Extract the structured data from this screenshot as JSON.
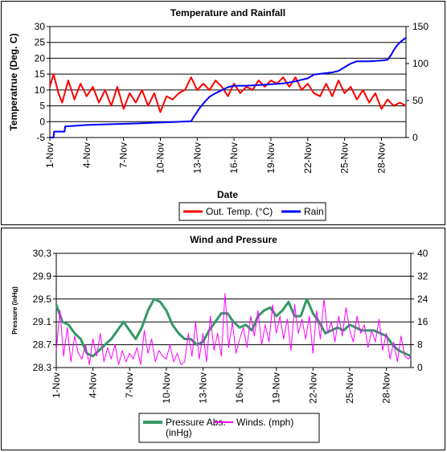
{
  "charts": [
    {
      "title": "Temperature and Rainfall",
      "ylabel": "Temperatrue (Deg. C)",
      "xlabel": "Date",
      "legend": [
        "Out. Temp. (°C)",
        "Rain"
      ]
    },
    {
      "title": "Wind and Pressure",
      "ylabel": "Pressure (inHg)",
      "xlabel": "Date",
      "legend": [
        "Pressure Abs.\n(inHg)",
        "Winds. (mph)"
      ]
    }
  ],
  "chart_data": [
    {
      "type": "line",
      "title": "Temperature and Rainfall",
      "xlabel": "Date",
      "ylabel": "Temperatrue (Deg. C)",
      "x_range": [
        "1-Nov",
        "30-Nov"
      ],
      "x_ticks": [
        "1-Nov",
        "4-Nov",
        "7-Nov",
        "10-Nov",
        "13-Nov",
        "16-Nov",
        "19-Nov",
        "22-Nov",
        "25-Nov",
        "28-Nov"
      ],
      "ylim": [
        -5,
        30
      ],
      "y_ticks": [
        -5,
        0,
        5,
        10,
        15,
        20,
        25,
        30
      ],
      "y2lim": [
        0,
        150
      ],
      "y2_ticks": [
        0,
        50,
        100,
        150
      ],
      "grid": true,
      "legend_position": "bottom",
      "colors": {
        "temp": "#ff0000",
        "rain": "#0000ff"
      },
      "series": [
        {
          "name": "Out. Temp. (°C)",
          "axis": "left",
          "x": [
            1.0,
            1.3,
            1.7,
            2.0,
            2.5,
            3.0,
            3.5,
            4.0,
            4.5,
            5.0,
            5.5,
            6.0,
            6.5,
            7.0,
            7.5,
            8.0,
            8.5,
            9.0,
            9.5,
            10.0,
            10.5,
            11.0,
            11.5,
            12.0,
            12.5,
            13.0,
            13.5,
            14.0,
            14.5,
            15.0,
            15.5,
            16.0,
            16.5,
            17.0,
            17.5,
            18.0,
            18.5,
            19.0,
            19.5,
            20.0,
            20.5,
            21.0,
            21.5,
            22.0,
            22.5,
            23.0,
            23.5,
            24.0,
            24.5,
            25.0,
            25.5,
            26.0,
            26.5,
            27.0,
            27.5,
            28.0,
            28.5,
            29.0,
            29.5,
            30.0
          ],
          "values": [
            11,
            15,
            9,
            6,
            13,
            7,
            12,
            8,
            11,
            6,
            10,
            5,
            11,
            4,
            9,
            6,
            10,
            5,
            9,
            3,
            8,
            7,
            9,
            10,
            14,
            10,
            12,
            10,
            13,
            11,
            8,
            12,
            9,
            11,
            10,
            13,
            11,
            13,
            12,
            14,
            11,
            14,
            10,
            12,
            9,
            8,
            12,
            8,
            13,
            9,
            11,
            7,
            10,
            6,
            9,
            4,
            7,
            5,
            6,
            5
          ]
        },
        {
          "name": "Rain",
          "axis": "right",
          "x": [
            1.0,
            1.3,
            1.35,
            2.2,
            2.25,
            4.0,
            6.0,
            8.0,
            9.5,
            11.0,
            12.5,
            12.8,
            13.2,
            13.6,
            14.0,
            14.5,
            15.0,
            15.5,
            16.0,
            17.0,
            18.0,
            19.0,
            20.0,
            21.0,
            21.5,
            22.0,
            22.5,
            24.0,
            24.5,
            25.0,
            25.5,
            26.0,
            27.0,
            28.0,
            28.5,
            28.8,
            29.0,
            29.3,
            29.6,
            30.0
          ],
          "values": [
            0,
            0,
            8,
            8,
            15,
            17,
            18,
            19,
            20,
            21,
            22,
            30,
            40,
            48,
            55,
            60,
            64,
            68,
            70,
            70,
            71,
            72,
            73,
            76,
            78,
            80,
            85,
            88,
            90,
            95,
            100,
            103,
            103,
            104,
            105,
            112,
            118,
            125,
            130,
            135
          ]
        }
      ]
    },
    {
      "type": "line",
      "title": "Wind and Pressure",
      "xlabel": "Date",
      "ylabel": "Pressure (inHg)",
      "x_range": [
        "1-Nov",
        "30-Nov"
      ],
      "x_ticks": [
        "1-Nov",
        "4-Nov",
        "7-Nov",
        "10-Nov",
        "13-Nov",
        "16-Nov",
        "19-Nov",
        "22-Nov",
        "25-Nov",
        "28-Nov"
      ],
      "ylim": [
        28.3,
        30.3
      ],
      "y_ticks": [
        28.3,
        28.7,
        29.1,
        29.5,
        29.9,
        30.3
      ],
      "y2lim": [
        0,
        40
      ],
      "y2_ticks": [
        0,
        8,
        16,
        24,
        32,
        40
      ],
      "grid": true,
      "legend_position": "bottom",
      "colors": {
        "pressure": "#339966",
        "wind": "#ff00ff"
      },
      "series": [
        {
          "name": "Pressure Abs.\n(inHg)",
          "axis": "left",
          "x": [
            1.0,
            1.5,
            2.0,
            2.5,
            3.0,
            3.5,
            4.0,
            4.5,
            5.0,
            5.5,
            6.0,
            6.5,
            7.0,
            7.5,
            8.0,
            8.5,
            9.0,
            9.5,
            10.0,
            10.5,
            11.0,
            11.5,
            12.0,
            12.5,
            13.0,
            13.5,
            14.0,
            14.5,
            15.0,
            15.5,
            16.0,
            16.5,
            17.0,
            17.5,
            18.0,
            18.5,
            19.0,
            19.5,
            20.0,
            20.5,
            21.0,
            21.5,
            22.0,
            22.5,
            23.0,
            23.5,
            24.0,
            24.5,
            25.0,
            25.5,
            26.0,
            26.5,
            27.0,
            27.5,
            28.0,
            28.5,
            29.0,
            29.5,
            30.0
          ],
          "values": [
            29.4,
            29.1,
            29.05,
            28.9,
            28.8,
            28.55,
            28.5,
            28.6,
            28.7,
            28.8,
            28.95,
            29.1,
            28.95,
            28.8,
            29.0,
            29.3,
            29.5,
            29.45,
            29.3,
            29.05,
            28.9,
            28.8,
            28.8,
            28.7,
            28.75,
            28.95,
            29.1,
            29.25,
            29.25,
            29.1,
            29.0,
            29.05,
            28.95,
            29.2,
            29.3,
            29.35,
            29.2,
            29.3,
            29.45,
            29.2,
            29.2,
            29.5,
            29.25,
            29.1,
            28.9,
            28.95,
            29.0,
            28.95,
            29.05,
            29.0,
            28.95,
            28.95,
            28.95,
            28.9,
            28.85,
            28.7,
            28.6,
            28.55,
            28.5
          ]
        },
        {
          "name": "Winds. (mph)",
          "axis": "right",
          "x": [
            1.0,
            1.3,
            1.6,
            1.9,
            2.2,
            2.5,
            2.8,
            3.1,
            3.4,
            3.7,
            4.0,
            4.3,
            4.6,
            4.9,
            5.2,
            5.5,
            5.8,
            6.1,
            6.4,
            6.7,
            7.0,
            7.3,
            7.6,
            7.9,
            8.2,
            8.5,
            8.8,
            9.1,
            9.4,
            9.7,
            10.0,
            10.3,
            10.6,
            10.9,
            11.2,
            11.5,
            11.8,
            12.1,
            12.4,
            12.7,
            13.0,
            13.3,
            13.6,
            13.9,
            14.2,
            14.5,
            14.8,
            15.1,
            15.4,
            15.7,
            16.0,
            16.3,
            16.6,
            16.9,
            17.2,
            17.5,
            17.8,
            18.1,
            18.4,
            18.7,
            19.0,
            19.3,
            19.6,
            19.9,
            20.2,
            20.5,
            20.8,
            21.1,
            21.4,
            21.7,
            22.0,
            22.3,
            22.6,
            22.9,
            23.2,
            23.5,
            23.8,
            24.1,
            24.4,
            24.7,
            25.0,
            25.3,
            25.6,
            25.9,
            26.2,
            26.5,
            26.8,
            27.1,
            27.4,
            27.7,
            28.0,
            28.3,
            28.6,
            28.9,
            29.2,
            29.5,
            29.8,
            30.0
          ],
          "values": [
            6,
            20,
            4,
            14,
            2,
            11,
            5,
            3,
            8,
            1,
            10,
            4,
            12,
            2,
            7,
            3,
            8,
            1,
            6,
            2,
            5,
            3,
            7,
            1,
            13,
            5,
            10,
            2,
            6,
            4,
            3,
            8,
            2,
            5,
            1,
            2,
            12,
            4,
            16,
            3,
            12,
            2,
            18,
            6,
            12,
            4,
            26,
            7,
            16,
            5,
            10,
            14,
            7,
            18,
            11,
            20,
            8,
            15,
            9,
            22,
            12,
            18,
            10,
            17,
            6,
            22,
            12,
            17,
            10,
            18,
            5,
            20,
            10,
            24,
            12,
            16,
            9,
            18,
            11,
            21,
            13,
            9,
            18,
            12,
            15,
            7,
            13,
            9,
            17,
            6,
            12,
            3,
            9,
            2,
            11,
            4,
            3,
            4
          ]
        }
      ]
    }
  ]
}
